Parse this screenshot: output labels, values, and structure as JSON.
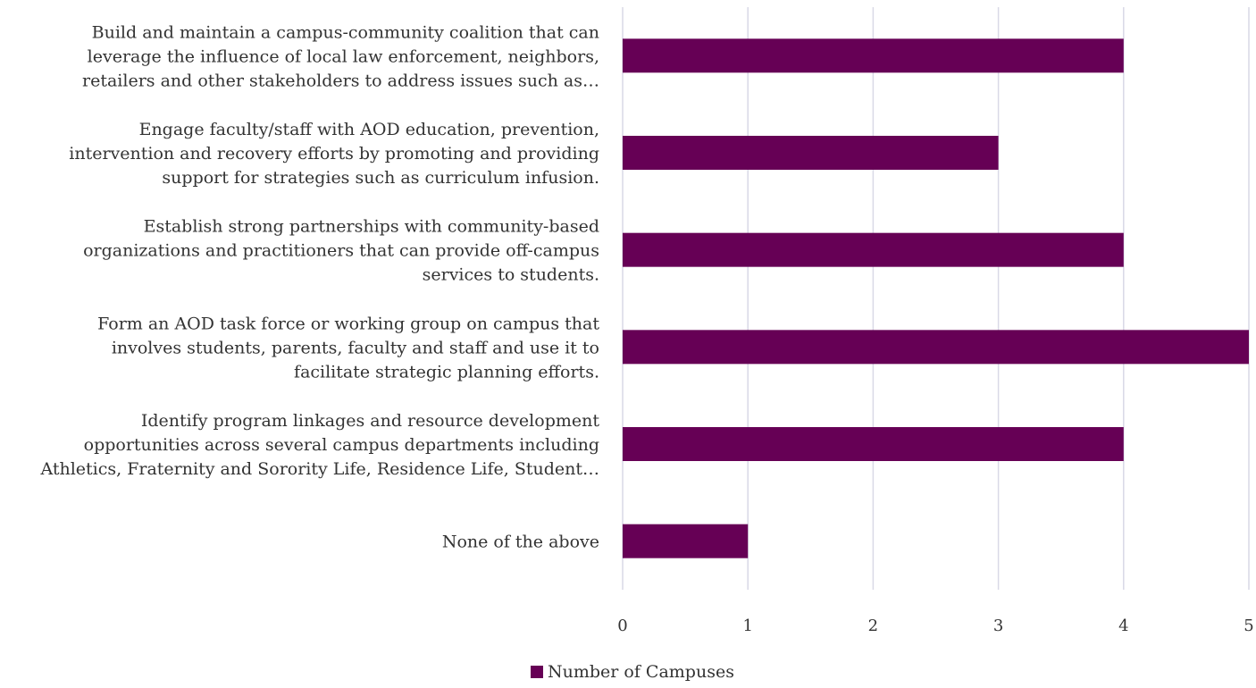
{
  "chart_data": {
    "type": "bar",
    "orientation": "horizontal",
    "categories": [
      [
        "Build and maintain a campus-community coalition that can",
        "leverage the influence of local law enforcement, neighbors,",
        "retailers and other stakeholders to address issues such as…"
      ],
      [
        "Engage faculty/staff with AOD education, prevention,",
        "intervention and recovery efforts by promoting and providing",
        "support for strategies such as curriculum infusion."
      ],
      [
        "Establish strong partnerships with community-based",
        "organizations and practitioners that can provide off-campus",
        "services to students."
      ],
      [
        "Form an AOD task force or working group on campus that",
        "involves students, parents, faculty and staff and use it to",
        "facilitate strategic planning efforts."
      ],
      [
        "Identify program linkages and resource development",
        "opportunities across several campus departments including",
        "Athletics, Fraternity and Sorority Life, Residence Life, Student…"
      ],
      [
        "None of the above"
      ]
    ],
    "series": [
      {
        "name": "Number of Campuses",
        "values": [
          4,
          3,
          4,
          5,
          4,
          1
        ],
        "color": "#660055"
      }
    ],
    "xlim": [
      0,
      5
    ],
    "xticks": [
      "0",
      "1",
      "2",
      "3",
      "4",
      "5"
    ],
    "grid": true,
    "legend": "bottom-center"
  }
}
